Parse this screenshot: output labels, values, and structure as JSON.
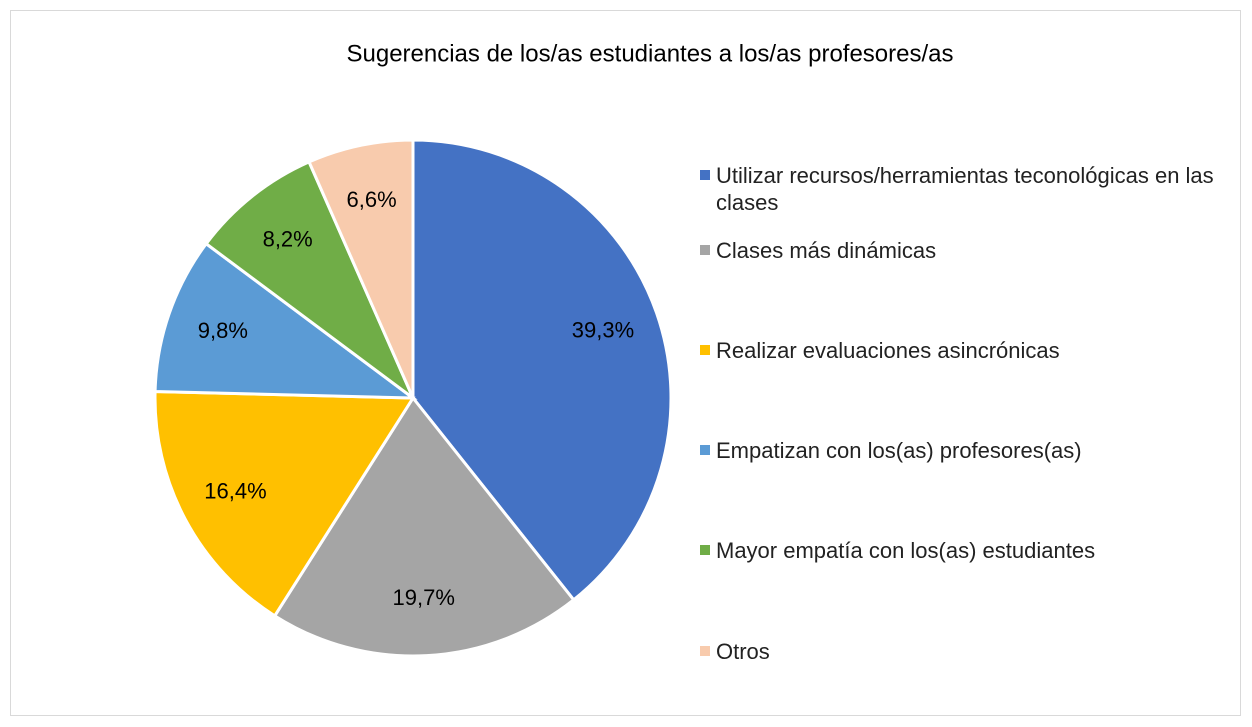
{
  "chart_data": {
    "type": "pie",
    "title": "Sugerencias de los/as estudiantes a los/as profesores/as",
    "categories": [
      "Utilizar recursos/herramientas  teconológicas en las clases",
      "Clases más dinámicas",
      "Realizar evaluaciones asincrónicas",
      "Empatizan con los(as) profesores(as)",
      "Mayor empatía con los(as) estudiantes",
      "Otros"
    ],
    "values": [
      39.3,
      19.7,
      16.4,
      9.8,
      8.2,
      6.6
    ],
    "value_labels": [
      "39,3%",
      "19,7%",
      "16,4%",
      "9,8%",
      "8,2%",
      "6,6%"
    ],
    "colors": [
      "#4472c4",
      "#a5a5a5",
      "#ffc000",
      "#5b9bd5",
      "#70ad47",
      "#f8cbad"
    ],
    "legend": "right"
  }
}
